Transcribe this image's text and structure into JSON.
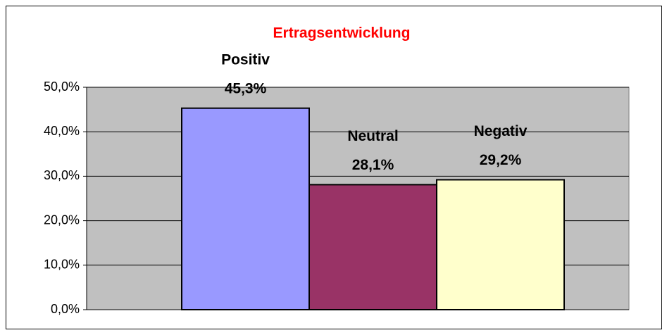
{
  "chart_data": {
    "type": "bar",
    "title": "Ertragsentwicklung",
    "categories": [
      "Positiv",
      "Neutral",
      "Negativ"
    ],
    "values": [
      45.3,
      28.1,
      29.2
    ],
    "value_labels": [
      "45,3%",
      "28,1%",
      "29,2%"
    ],
    "colors": [
      "#9999ff",
      "#993366",
      "#ffffcc"
    ],
    "ylim": [
      0,
      50
    ],
    "yticks": [
      {
        "value": 0,
        "label": "0,0%"
      },
      {
        "value": 10,
        "label": "10,0%"
      },
      {
        "value": 20,
        "label": "20,0%"
      },
      {
        "value": 30,
        "label": "30,0%"
      },
      {
        "value": 40,
        "label": "40,0%"
      },
      {
        "value": 50,
        "label": "50,0%"
      }
    ],
    "grid": true
  }
}
